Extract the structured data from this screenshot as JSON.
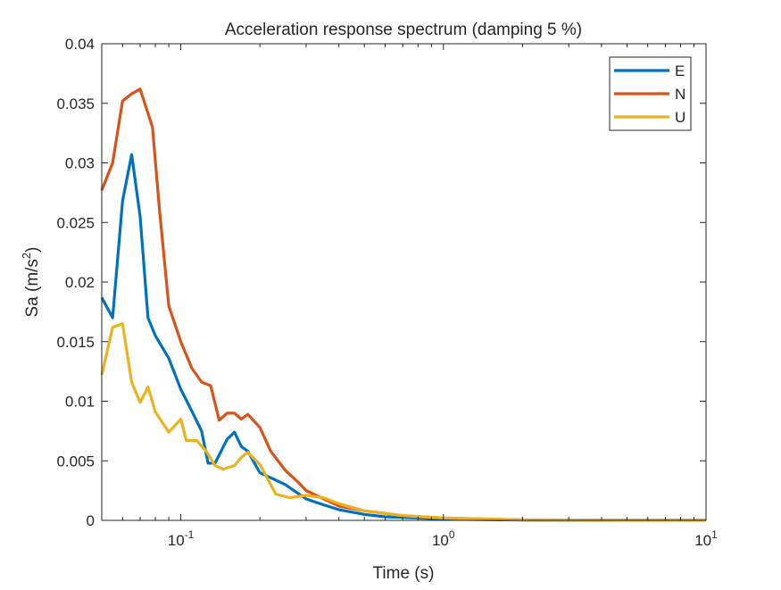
{
  "chart_data": {
    "type": "line",
    "title": "Acceleration response spectrum (damping 5 %)",
    "xlabel": "Time (s)",
    "ylabel_main": "Sa (m/s",
    "ylabel_sup": "2",
    "ylabel_close": ")",
    "xscale": "log",
    "xlim": [
      0.05,
      10
    ],
    "ylim": [
      0,
      0.04
    ],
    "grid": false,
    "legend_position": "top-right",
    "y_ticks": [
      0,
      0.005,
      0.01,
      0.015,
      0.02,
      0.025,
      0.03,
      0.035,
      0.04
    ],
    "y_tick_labels": [
      "0",
      "0.005",
      "0.01",
      "0.015",
      "0.02",
      "0.025",
      "0.03",
      "0.035",
      "0.04"
    ],
    "x_ticks": [
      {
        "value": 0.1,
        "base": "10",
        "exp": "-1"
      },
      {
        "value": 1,
        "base": "10",
        "exp": "0"
      },
      {
        "value": 10,
        "base": "10",
        "exp": "1"
      }
    ],
    "series": [
      {
        "name": "E",
        "color": "#0072BD",
        "points": [
          [
            0.05,
            0.0187
          ],
          [
            0.055,
            0.017
          ],
          [
            0.06,
            0.0268
          ],
          [
            0.065,
            0.0307
          ],
          [
            0.07,
            0.0255
          ],
          [
            0.075,
            0.017
          ],
          [
            0.08,
            0.0155
          ],
          [
            0.09,
            0.0136
          ],
          [
            0.1,
            0.011
          ],
          [
            0.11,
            0.0092
          ],
          [
            0.12,
            0.0075
          ],
          [
            0.127,
            0.0048
          ],
          [
            0.135,
            0.0048
          ],
          [
            0.15,
            0.0068
          ],
          [
            0.16,
            0.0074
          ],
          [
            0.17,
            0.0062
          ],
          [
            0.18,
            0.0058
          ],
          [
            0.2,
            0.004
          ],
          [
            0.25,
            0.003
          ],
          [
            0.3,
            0.0018
          ],
          [
            0.35,
            0.0013
          ],
          [
            0.4,
            0.0009
          ],
          [
            0.5,
            0.0005
          ],
          [
            0.6,
            0.0003
          ],
          [
            0.8,
            0.0002
          ],
          [
            1,
            0.0001
          ],
          [
            2,
            3e-05
          ],
          [
            5,
            1e-05
          ],
          [
            10,
            1e-05
          ]
        ]
      },
      {
        "name": "N",
        "color": "#D95319",
        "points": [
          [
            0.05,
            0.0277
          ],
          [
            0.055,
            0.03
          ],
          [
            0.06,
            0.0352
          ],
          [
            0.065,
            0.0358
          ],
          [
            0.07,
            0.0362
          ],
          [
            0.078,
            0.033
          ],
          [
            0.083,
            0.026
          ],
          [
            0.09,
            0.018
          ],
          [
            0.1,
            0.015
          ],
          [
            0.11,
            0.0128
          ],
          [
            0.12,
            0.0116
          ],
          [
            0.13,
            0.0113
          ],
          [
            0.14,
            0.0084
          ],
          [
            0.15,
            0.009
          ],
          [
            0.16,
            0.009
          ],
          [
            0.17,
            0.0085
          ],
          [
            0.18,
            0.0089
          ],
          [
            0.2,
            0.0078
          ],
          [
            0.22,
            0.0058
          ],
          [
            0.25,
            0.0042
          ],
          [
            0.28,
            0.0032
          ],
          [
            0.3,
            0.0025
          ],
          [
            0.35,
            0.0018
          ],
          [
            0.4,
            0.0012
          ],
          [
            0.5,
            0.0008
          ],
          [
            0.7,
            0.0004
          ],
          [
            1,
            0.0002
          ],
          [
            2,
            4e-05
          ],
          [
            5,
            1e-05
          ],
          [
            10,
            1e-05
          ]
        ]
      },
      {
        "name": "U",
        "color": "#EDB120",
        "points": [
          [
            0.05,
            0.0122
          ],
          [
            0.055,
            0.0162
          ],
          [
            0.06,
            0.0165
          ],
          [
            0.065,
            0.0116
          ],
          [
            0.07,
            0.0099
          ],
          [
            0.075,
            0.0112
          ],
          [
            0.08,
            0.0091
          ],
          [
            0.09,
            0.0074
          ],
          [
            0.1,
            0.0085
          ],
          [
            0.105,
            0.0067
          ],
          [
            0.115,
            0.0067
          ],
          [
            0.125,
            0.0058
          ],
          [
            0.135,
            0.0046
          ],
          [
            0.145,
            0.0043
          ],
          [
            0.16,
            0.0046
          ],
          [
            0.17,
            0.0053
          ],
          [
            0.18,
            0.0057
          ],
          [
            0.2,
            0.0047
          ],
          [
            0.23,
            0.0022
          ],
          [
            0.26,
            0.0019
          ],
          [
            0.3,
            0.0021
          ],
          [
            0.35,
            0.0019
          ],
          [
            0.4,
            0.0014
          ],
          [
            0.5,
            0.0008
          ],
          [
            0.7,
            0.0004
          ],
          [
            1,
            0.0002
          ],
          [
            2,
            4e-05
          ],
          [
            5,
            1e-05
          ],
          [
            10,
            1e-05
          ]
        ]
      }
    ]
  }
}
